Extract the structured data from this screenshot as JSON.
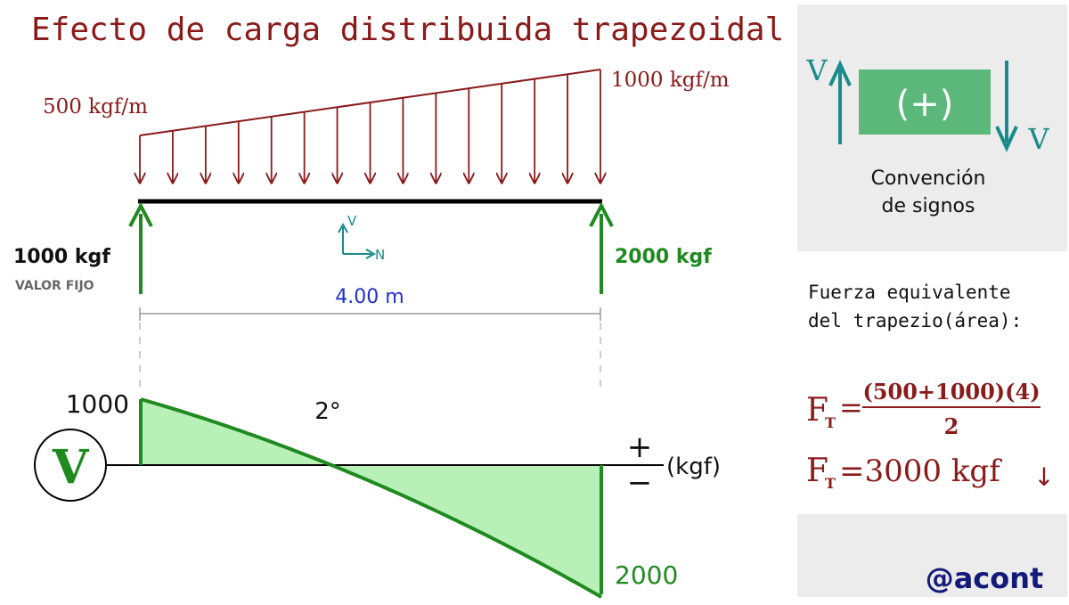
{
  "title": "Efecto de carga distribuida trapezoidal",
  "load": {
    "left_label": "500 kgf/m",
    "right_label": "1000 kgf/m",
    "left_value": 500,
    "right_value": 1000,
    "arrow_count": 15
  },
  "beam": {
    "span_label": "4.00 m",
    "axes": {
      "v": "V",
      "n": "N"
    }
  },
  "supports": {
    "left_force": "1000 kgf",
    "left_note": "VALOR FIJO",
    "right_force": "2000 kgf"
  },
  "shear_diagram": {
    "symbol": "V",
    "max_label": "1000",
    "min_label": "2000",
    "degree_label": "2°",
    "plus": "+",
    "minus": "−",
    "unit": "(kgf)",
    "v_start": 1000,
    "v_end": -2000
  },
  "sign_convention": {
    "v_left": "V",
    "v_right": "V",
    "box_label": "(+)",
    "caption_line1": "Convención",
    "caption_line2": "de signos"
  },
  "equivalent_force": {
    "heading_line1": "Fuerza equivalente",
    "heading_line2": "del trapezio(área):",
    "symbol": "F",
    "subscript": "T",
    "equals": "=",
    "numerator": "(500+1000)(4)",
    "denominator": "2",
    "result": "=3000 kgf",
    "arrow": "↓"
  },
  "credit": "@acont",
  "colors": {
    "dark_red": "#8b1a1a",
    "green": "#1f8a1f",
    "fill_green": "#b8f0b8",
    "teal": "#1a8a8a",
    "blue": "#2030d0",
    "panel_gray": "#ececec",
    "box_green": "#5cb87a",
    "navy": "#141a7a"
  }
}
